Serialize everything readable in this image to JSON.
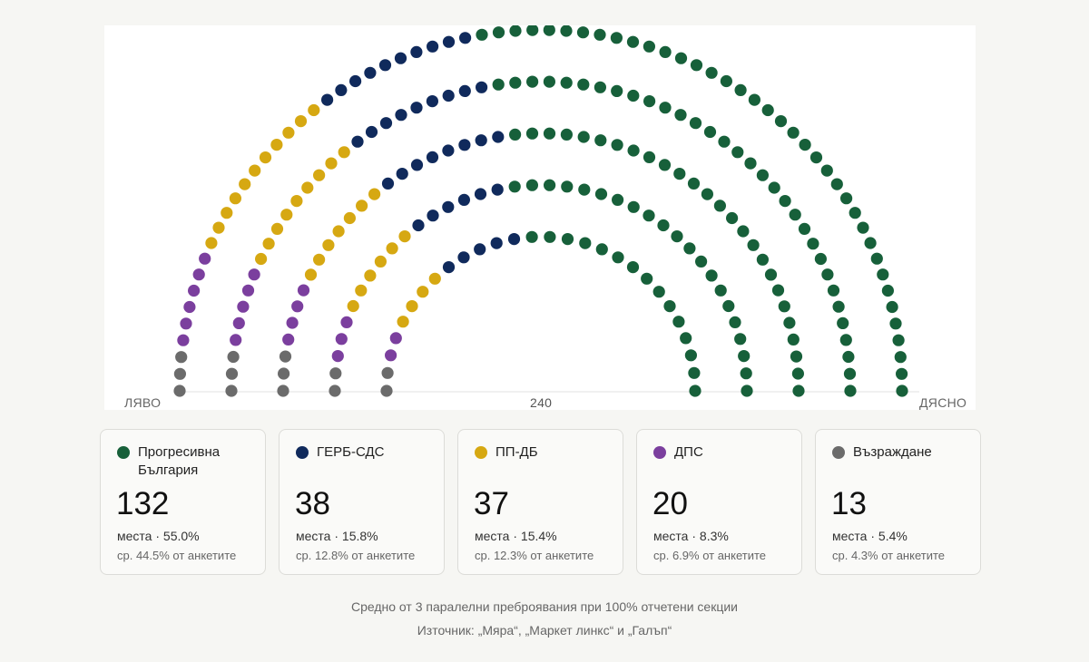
{
  "chart_data": {
    "type": "parliament",
    "title": "",
    "total_seats": 240,
    "total_label": "240",
    "left_label": "ЛЯВО",
    "right_label": "ДЯСНО",
    "rows": 5,
    "series": [
      {
        "name": "Възраждане",
        "seats": 13,
        "color": "#6b6b6b"
      },
      {
        "name": "ДПС",
        "seats": 20,
        "color": "#7b3f9e"
      },
      {
        "name": "ПП-ДБ",
        "seats": 37,
        "color": "#d6a812"
      },
      {
        "name": "ГЕРБ-СДС",
        "seats": 38,
        "color": "#102a5c"
      },
      {
        "name": "Прогресивна България",
        "seats": 132,
        "color": "#17603a"
      }
    ]
  },
  "cards": [
    {
      "name": "Прогресивна България",
      "seats": "132",
      "seats_label": "места · ",
      "pct": "55.0%",
      "poll": "ср. 44.5% от анкетите",
      "color": "#17603a"
    },
    {
      "name": "ГЕРБ-СДС",
      "seats": "38",
      "seats_label": "места · ",
      "pct": "15.8%",
      "poll": "ср. 12.8% от анкетите",
      "color": "#102a5c"
    },
    {
      "name": "ПП-ДБ",
      "seats": "37",
      "seats_label": "места · ",
      "pct": "15.4%",
      "poll": "ср. 12.3% от анкетите",
      "color": "#d6a812"
    },
    {
      "name": "ДПС",
      "seats": "20",
      "seats_label": "места · ",
      "pct": "8.3%",
      "poll": "ср. 6.9% от анкетите",
      "color": "#7b3f9e"
    },
    {
      "name": "Възраждане",
      "seats": "13",
      "seats_label": "места · ",
      "pct": "5.4%",
      "poll": "ср. 4.3% от анкетите",
      "color": "#6b6b6b"
    }
  ],
  "footnote": {
    "line1": "Средно от 3 паралелни преброявания при 100% отчетени секции",
    "line2": "Източник: „Мяра“, „Маркет линкс“ и „Галъп“"
  }
}
